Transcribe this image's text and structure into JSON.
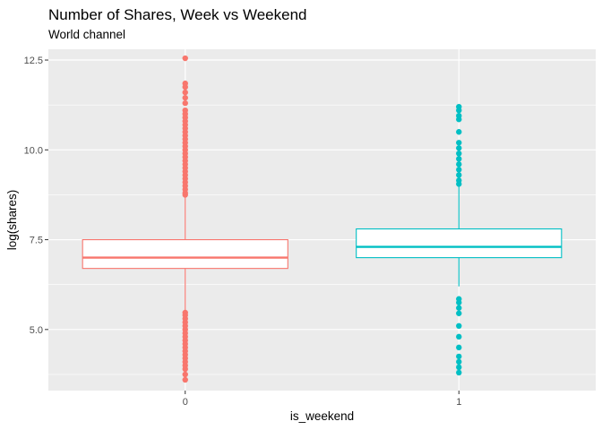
{
  "chart_data": {
    "type": "boxplot",
    "title": "Number of Shares, Week vs Weekend",
    "subtitle": "World channel",
    "xlabel": "is_weekend",
    "ylabel": "log(shares)",
    "ylim": [
      3.3,
      12.8
    ],
    "y_ticks": [
      5.0,
      7.5,
      10.0,
      12.5
    ],
    "y_tick_labels": [
      "5.0",
      "7.5",
      "10.0",
      "12.5"
    ],
    "grid": true,
    "legend": "none",
    "categories": [
      "0",
      "1"
    ],
    "colors": [
      "#F8766D",
      "#00BFC4"
    ],
    "boxes": [
      {
        "category": "0",
        "color": "#F8766D",
        "whisker_low": 5.53,
        "q1": 6.7,
        "median": 7.0,
        "q3": 7.5,
        "whisker_high": 8.7,
        "outliers": [
          3.6,
          3.75,
          3.9,
          4.0,
          4.1,
          4.2,
          4.3,
          4.4,
          4.5,
          4.6,
          4.7,
          4.8,
          4.9,
          5.0,
          5.1,
          5.2,
          5.3,
          5.4,
          5.47,
          8.75,
          8.8,
          8.9,
          9.0,
          9.1,
          9.2,
          9.3,
          9.4,
          9.5,
          9.6,
          9.7,
          9.8,
          9.9,
          10.0,
          10.1,
          10.2,
          10.3,
          10.4,
          10.5,
          10.6,
          10.7,
          10.8,
          10.9,
          11.0,
          11.1,
          11.3,
          11.45,
          11.6,
          11.75,
          11.85,
          12.55
        ]
      },
      {
        "category": "1",
        "color": "#00BFC4",
        "whisker_low": 6.2,
        "q1": 7.0,
        "median": 7.3,
        "q3": 7.8,
        "whisker_high": 9.0,
        "outliers": [
          3.8,
          3.95,
          4.1,
          4.25,
          4.5,
          4.8,
          5.1,
          5.45,
          5.6,
          5.75,
          5.85,
          9.05,
          9.15,
          9.3,
          9.45,
          9.6,
          9.75,
          9.9,
          10.05,
          10.2,
          10.5,
          10.85,
          10.95,
          11.1,
          11.2
        ]
      }
    ]
  }
}
